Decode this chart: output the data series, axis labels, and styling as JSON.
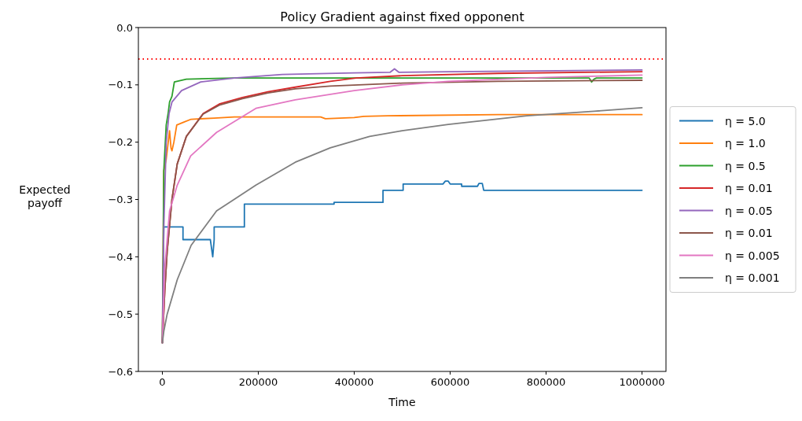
{
  "chart_data": {
    "type": "line",
    "title": "Policy Gradient against fixed opponent",
    "xlabel": "Time",
    "ylabel": "Expected payoff",
    "xlim": [
      -50000,
      1050000
    ],
    "xticks": [
      0,
      200000,
      400000,
      600000,
      800000,
      1000000
    ],
    "ylim": [
      -0.6,
      0
    ],
    "yticks": [
      {
        "value": -0.6,
        "label": "−0.6"
      },
      {
        "value": -0.5,
        "label": "−0.5"
      },
      {
        "value": -0.4,
        "label": "−0.4"
      },
      {
        "value": -0.3,
        "label": "−0.3"
      },
      {
        "value": -0.2,
        "label": "−0.2"
      },
      {
        "value": -0.1,
        "label": "−0.1"
      },
      {
        "value": 0,
        "label": "0.0"
      }
    ],
    "grid": false,
    "legend": "right",
    "line_style": "solid",
    "marker": "none",
    "ref_lines": [
      {
        "axis": "y",
        "value": -0.055,
        "color": "#ff0000",
        "line_style": "dotted"
      }
    ],
    "series": [
      {
        "name": "η = 5.0",
        "color": "#1f77b4",
        "x": [
          0,
          3000,
          43000,
          43000,
          100000,
          105000,
          108000,
          108000,
          171000,
          171000,
          358000,
          358000,
          460000,
          460000,
          502000,
          502000,
          585000,
          590000,
          596000,
          600000,
          624000,
          624000,
          657000,
          660000,
          667000,
          670000,
          1000000
        ],
        "values": [
          -0.55,
          -0.348,
          -0.348,
          -0.37,
          -0.37,
          -0.4,
          -0.37,
          -0.348,
          -0.348,
          -0.308,
          -0.308,
          -0.305,
          -0.305,
          -0.284,
          -0.284,
          -0.273,
          -0.273,
          -0.268,
          -0.268,
          -0.273,
          -0.273,
          -0.277,
          -0.277,
          -0.272,
          -0.272,
          -0.284,
          -0.284
        ]
      },
      {
        "name": "η = 1.0",
        "color": "#ff7f0e",
        "x": [
          0,
          3000,
          8000,
          15000,
          18000,
          20000,
          24000,
          30000,
          45000,
          60000,
          108000,
          150000,
          330000,
          340000,
          400000,
          420000,
          470000,
          700000,
          1000000
        ],
        "values": [
          -0.55,
          -0.25,
          -0.23,
          -0.18,
          -0.21,
          -0.215,
          -0.2,
          -0.17,
          -0.165,
          -0.16,
          -0.158,
          -0.156,
          -0.156,
          -0.159,
          -0.157,
          -0.155,
          -0.154,
          -0.152,
          -0.152
        ]
      },
      {
        "name": "η = 0.5",
        "color": "#2ca02c",
        "x": [
          0,
          3000,
          8000,
          12000,
          15000,
          20000,
          25000,
          50000,
          150000,
          400000,
          890000,
          895000,
          900000,
          905000,
          1000000
        ],
        "values": [
          -0.55,
          -0.25,
          -0.17,
          -0.15,
          -0.13,
          -0.12,
          -0.095,
          -0.09,
          -0.088,
          -0.088,
          -0.088,
          -0.095,
          -0.09,
          -0.088,
          -0.088
        ]
      },
      {
        "name": "η = 0.01",
        "color": "#d62728",
        "x": [
          0,
          5000,
          10000,
          20000,
          31000,
          50000,
          85000,
          120000,
          167000,
          220000,
          277000,
          350000,
          404000,
          500000,
          700000,
          1000000
        ],
        "values": [
          -0.55,
          -0.46,
          -0.39,
          -0.3,
          -0.238,
          -0.19,
          -0.15,
          -0.133,
          -0.122,
          -0.112,
          -0.104,
          -0.094,
          -0.088,
          -0.084,
          -0.08,
          -0.077
        ]
      },
      {
        "name": "η = 0.05",
        "color": "#9467bd",
        "x": [
          0,
          3000,
          8000,
          14000,
          20000,
          40000,
          80000,
          150000,
          250000,
          400000,
          475000,
          484000,
          493000,
          600000,
          1000000
        ],
        "values": [
          -0.55,
          -0.35,
          -0.2,
          -0.15,
          -0.13,
          -0.11,
          -0.095,
          -0.088,
          -0.082,
          -0.079,
          -0.078,
          -0.072,
          -0.078,
          -0.077,
          -0.074
        ]
      },
      {
        "name": "η = 0.01",
        "color": "#8c564b",
        "x": [
          0,
          5000,
          10000,
          20000,
          31000,
          50000,
          85000,
          120000,
          167000,
          220000,
          277000,
          350000,
          500000,
          700000,
          1000000
        ],
        "values": [
          -0.55,
          -0.46,
          -0.39,
          -0.3,
          -0.238,
          -0.19,
          -0.151,
          -0.135,
          -0.124,
          -0.114,
          -0.107,
          -0.102,
          -0.097,
          -0.094,
          -0.092
        ]
      },
      {
        "name": "η = 0.005",
        "color": "#e377c2",
        "x": [
          0,
          5000,
          15000,
          31000,
          59000,
          113000,
          195000,
          277000,
          400000,
          500000,
          596000,
          800000,
          1000000
        ],
        "values": [
          -0.55,
          -0.42,
          -0.32,
          -0.275,
          -0.224,
          -0.183,
          -0.141,
          -0.126,
          -0.11,
          -0.1,
          -0.094,
          -0.087,
          -0.083
        ]
      },
      {
        "name": "η = 0.001",
        "color": "#7f7f7f",
        "x": [
          0,
          3000,
          10000,
          31000,
          60000,
          113000,
          195000,
          277000,
          350000,
          432000,
          500000,
          596000,
          760000,
          900000,
          1000000
        ],
        "values": [
          -0.55,
          -0.53,
          -0.5,
          -0.44,
          -0.38,
          -0.32,
          -0.275,
          -0.235,
          -0.21,
          -0.19,
          -0.18,
          -0.169,
          -0.154,
          -0.146,
          -0.14
        ]
      }
    ]
  }
}
